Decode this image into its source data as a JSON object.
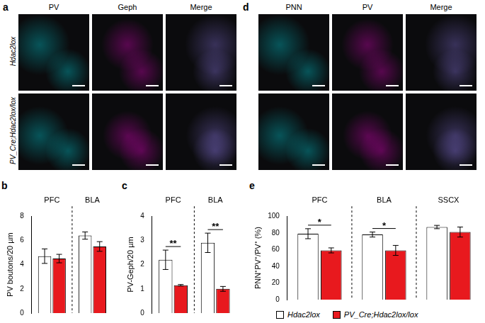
{
  "figure": {
    "image_panels": [
      {
        "panel": "a",
        "columns": [
          "PV",
          "Geph",
          "Merge"
        ],
        "rows": [
          "Hdac2lox",
          "PV_Cre;Hdac2lox/lox"
        ]
      },
      {
        "panel": "d",
        "columns": [
          "PNN",
          "PV",
          "Merge"
        ]
      }
    ]
  },
  "chart_data": [
    {
      "panel": "b",
      "type": "bar",
      "categories": [
        "PFC",
        "BLA"
      ],
      "y_label": "PV boutons/20 µm",
      "ylim": [
        0,
        8
      ],
      "yticks": [
        0,
        2,
        4,
        6,
        8
      ],
      "series": [
        {
          "name": "Hdac2lox",
          "color": "#ffffff",
          "values": [
            4.7,
            6.4
          ],
          "errors": [
            0.6,
            0.3
          ]
        },
        {
          "name": "PV_Cre;Hdac2lox/lox",
          "color": "#e8191e",
          "values": [
            4.5,
            5.5
          ],
          "errors": [
            0.35,
            0.4
          ]
        }
      ]
    },
    {
      "panel": "c",
      "type": "bar",
      "categories": [
        "PFC",
        "BLA"
      ],
      "y_label": "PV-Geph/20 µm",
      "ylim": [
        0,
        4
      ],
      "yticks": [
        0,
        1,
        2,
        3,
        4
      ],
      "series": [
        {
          "name": "Hdac2lox",
          "color": "#ffffff",
          "values": [
            2.2,
            2.9
          ],
          "errors": [
            0.4,
            0.4
          ]
        },
        {
          "name": "PV_Cre;Hdac2lox/lox",
          "color": "#e8191e",
          "values": [
            1.15,
            1.0
          ],
          "errors": [
            0.03,
            0.1
          ]
        }
      ],
      "annotations": [
        {
          "category": "PFC",
          "text": "**"
        },
        {
          "category": "BLA",
          "text": "**"
        }
      ]
    },
    {
      "panel": "e",
      "type": "bar",
      "categories": [
        "PFC",
        "BLA",
        "SSCX"
      ],
      "y_label": "PNN⁺PV⁺/PV⁺ (%)",
      "ylim": [
        0,
        100
      ],
      "yticks": [
        0,
        20,
        40,
        60,
        80,
        100
      ],
      "legend": "bottom",
      "series": [
        {
          "name": "Hdac2lox",
          "color": "#ffffff",
          "values": [
            79,
            78,
            87
          ],
          "errors": [
            6,
            3,
            2
          ]
        },
        {
          "name": "PV_Cre;Hdac2lox/lox",
          "color": "#e8191e",
          "values": [
            59,
            59,
            81
          ],
          "errors": [
            3,
            6,
            6
          ]
        }
      ],
      "annotations": [
        {
          "category": "PFC",
          "text": "*"
        },
        {
          "category": "BLA",
          "text": "*"
        }
      ]
    }
  ]
}
